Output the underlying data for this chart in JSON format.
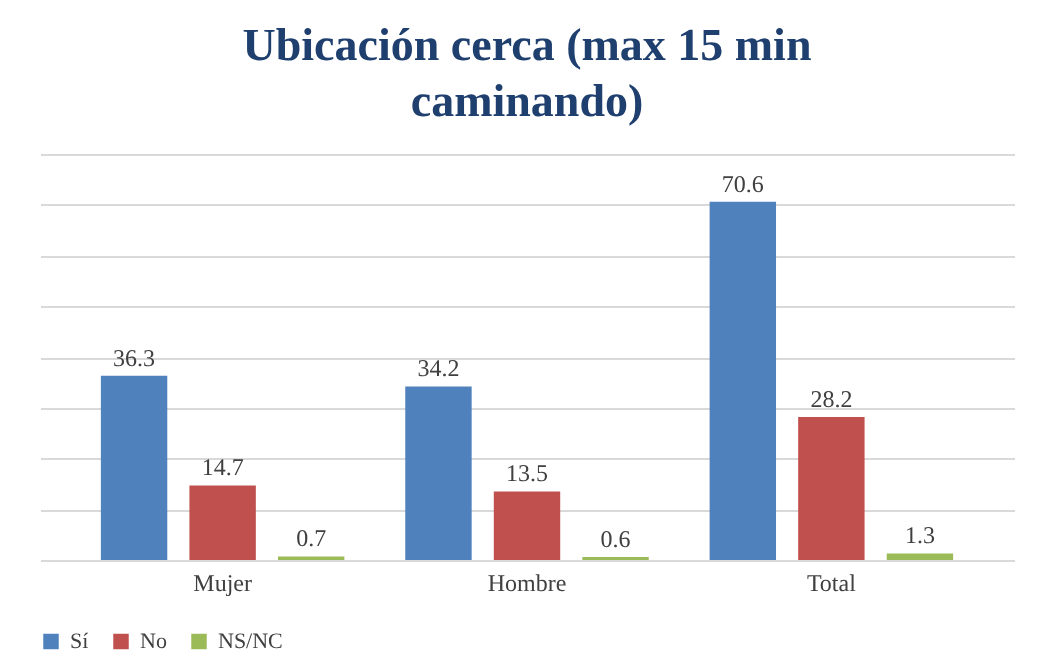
{
  "chart_data": {
    "type": "bar",
    "title": "Ubicación cerca (max 15 min caminando)",
    "categories": [
      "Mujer",
      "Hombre",
      "Total"
    ],
    "series": [
      {
        "name": "Sí",
        "color": "#4f81bd",
        "values": [
          36.3,
          34.2,
          70.6
        ]
      },
      {
        "name": "No",
        "color": "#c0504d",
        "values": [
          14.7,
          13.5,
          28.2
        ]
      },
      {
        "name": "NS/NC",
        "color": "#9bbb59",
        "values": [
          0.7,
          0.6,
          1.3
        ]
      }
    ],
    "ylim": [
      0,
      80
    ],
    "yticks": [
      {
        "value": 0,
        "label": null
      },
      {
        "value": 10,
        "label": null
      },
      {
        "value": 20,
        "label": null
      },
      {
        "value": 30,
        "label": null
      },
      {
        "value": 40,
        "label": null
      },
      {
        "value": 50,
        "label": null
      },
      {
        "value": 60,
        "label": null
      },
      {
        "value": 70,
        "label": null
      },
      {
        "value": 80,
        "label": null
      }
    ],
    "tick_labels": "x",
    "grid": "y",
    "legend": "bottom",
    "data_labels": true
  }
}
